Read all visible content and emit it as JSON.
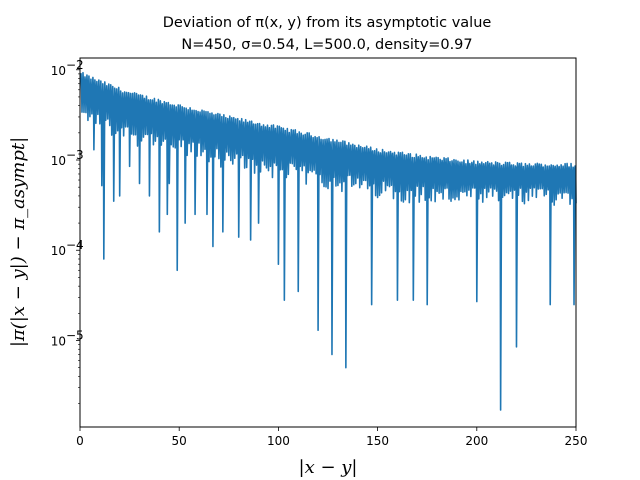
{
  "chart_data": {
    "type": "line",
    "title": "Deviation of π(x, y) from its asymptotic value",
    "subtitle": "N=450, σ=0.54, L=500.0, density=0.97",
    "xlabel": "|x − y|",
    "ylabel": "|π(|x − y|) − π_asympt|",
    "xlim": [
      0,
      250
    ],
    "ylim": [
      1.1e-06,
      0.0135
    ],
    "yscale": "log",
    "grid": false,
    "x_ticks": [
      "0",
      "50",
      "100",
      "150",
      "200",
      "250"
    ],
    "y_ticks": [
      {
        "base": "10",
        "exp": "−5"
      },
      {
        "base": "10",
        "exp": "−4"
      },
      {
        "base": "10",
        "exp": "−3"
      },
      {
        "base": "10",
        "exp": "−2"
      }
    ],
    "series": [
      {
        "color": "#1f77b4",
        "envelope_x": [
          1,
          10,
          25,
          50,
          75,
          100,
          125,
          150,
          175,
          200,
          225,
          250
        ],
        "envelope_upper": [
          0.0095,
          0.0078,
          0.0058,
          0.0042,
          0.0031,
          0.0024,
          0.0018,
          0.00135,
          0.00112,
          0.00098,
          0.00093,
          0.00092
        ],
        "envelope_lower": [
          0.0044,
          0.0036,
          0.0027,
          0.002,
          0.0014,
          0.0011,
          0.00085,
          0.00067,
          0.00058,
          0.00055,
          0.00055,
          0.00058
        ],
        "dips": [
          {
            "x": 7,
            "y": 0.0013
          },
          {
            "x": 11,
            "y": 0.00052
          },
          {
            "x": 12,
            "y": 8e-05
          },
          {
            "x": 17,
            "y": 0.00035
          },
          {
            "x": 20,
            "y": 0.0004
          },
          {
            "x": 25,
            "y": 0.00085
          },
          {
            "x": 30,
            "y": 0.00055
          },
          {
            "x": 35,
            "y": 0.0004
          },
          {
            "x": 40,
            "y": 0.00016
          },
          {
            "x": 44,
            "y": 0.00025
          },
          {
            "x": 45,
            "y": 0.00055
          },
          {
            "x": 49,
            "y": 6e-05
          },
          {
            "x": 53,
            "y": 0.0002
          },
          {
            "x": 58,
            "y": 0.00025
          },
          {
            "x": 64,
            "y": 0.00025
          },
          {
            "x": 67,
            "y": 0.00011
          },
          {
            "x": 72,
            "y": 0.00016
          },
          {
            "x": 80,
            "y": 0.00014
          },
          {
            "x": 86,
            "y": 0.00013
          },
          {
            "x": 90,
            "y": 0.0002
          },
          {
            "x": 100,
            "y": 7e-05
          },
          {
            "x": 103,
            "y": 2.8e-05
          },
          {
            "x": 110,
            "y": 3.5e-05
          },
          {
            "x": 120,
            "y": 1.3e-05
          },
          {
            "x": 127,
            "y": 7e-06
          },
          {
            "x": 134,
            "y": 5e-06
          },
          {
            "x": 147,
            "y": 2.5e-05
          },
          {
            "x": 160,
            "y": 2.8e-05
          },
          {
            "x": 168,
            "y": 2.8e-05
          },
          {
            "x": 175,
            "y": 2.5e-05
          },
          {
            "x": 200,
            "y": 2.7e-05
          },
          {
            "x": 212,
            "y": 1.7e-06
          },
          {
            "x": 220,
            "y": 8.5e-06
          },
          {
            "x": 237,
            "y": 2.5e-05
          },
          {
            "x": 249,
            "y": 2.5e-05
          }
        ]
      }
    ]
  }
}
